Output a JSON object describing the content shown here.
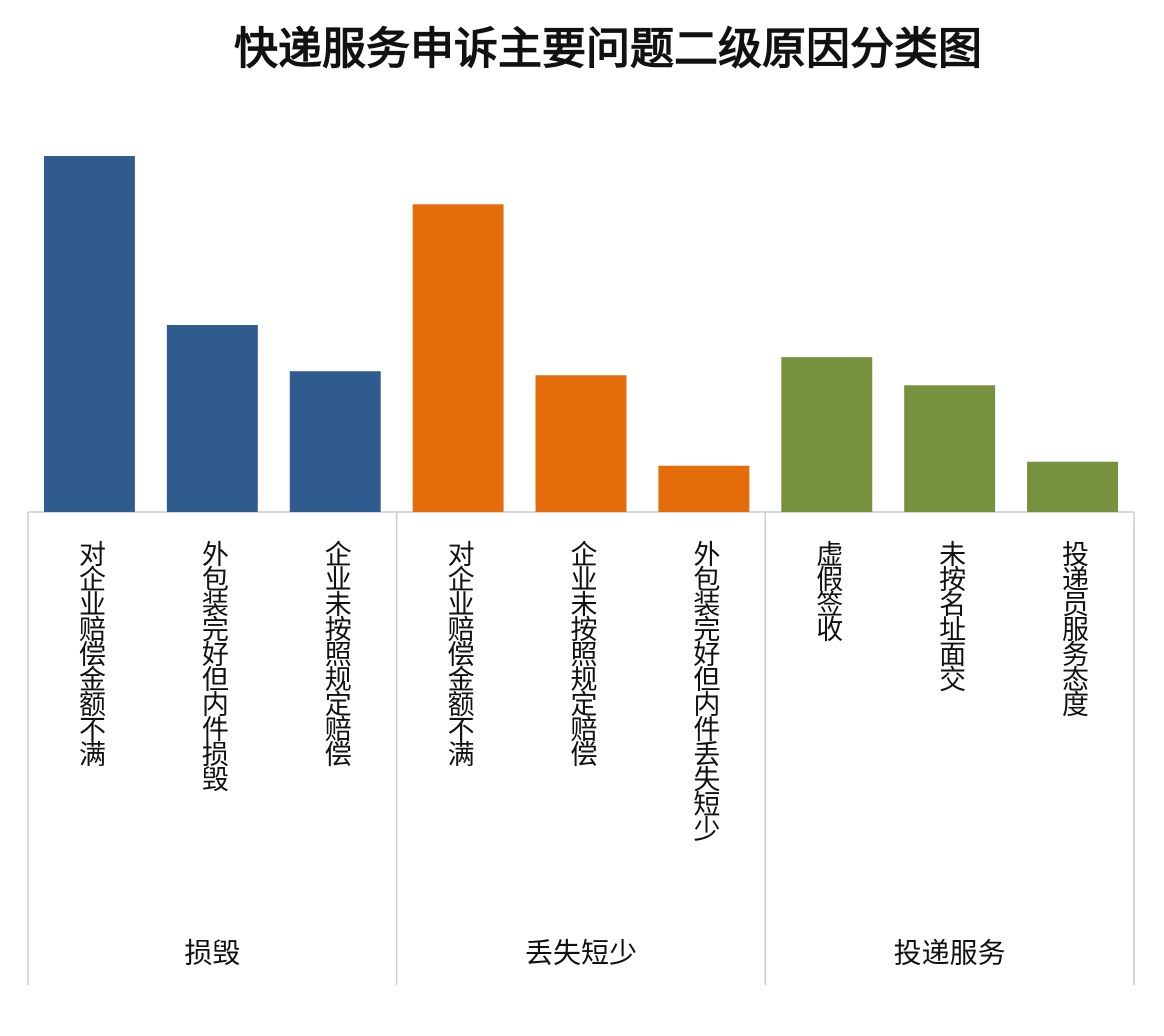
{
  "chart_data": {
    "type": "bar",
    "title": "快递服务申诉主要问题二级原因分类图",
    "ylim": [
      0,
      360
    ],
    "groups": [
      {
        "name": "损毁",
        "color": "#2f5b8e",
        "categories": [
          "对企业赔偿金额不满",
          "外包装完好但内件损毁",
          "企业未按照规定赔偿"
        ],
        "values": [
          354,
          186,
          140
        ]
      },
      {
        "name": "丢失短少",
        "color": "#e46c0a",
        "categories": [
          "对企业赔偿金额不满",
          "企业未按照规定赔偿",
          "外包装完好但内件丢失短少"
        ],
        "values": [
          306,
          136,
          46
        ]
      },
      {
        "name": "投递服务",
        "color": "#76923c",
        "categories": [
          "虚假签收",
          "未按名址面交",
          "投递员服务态度"
        ],
        "values": [
          154,
          126,
          50
        ]
      }
    ]
  }
}
